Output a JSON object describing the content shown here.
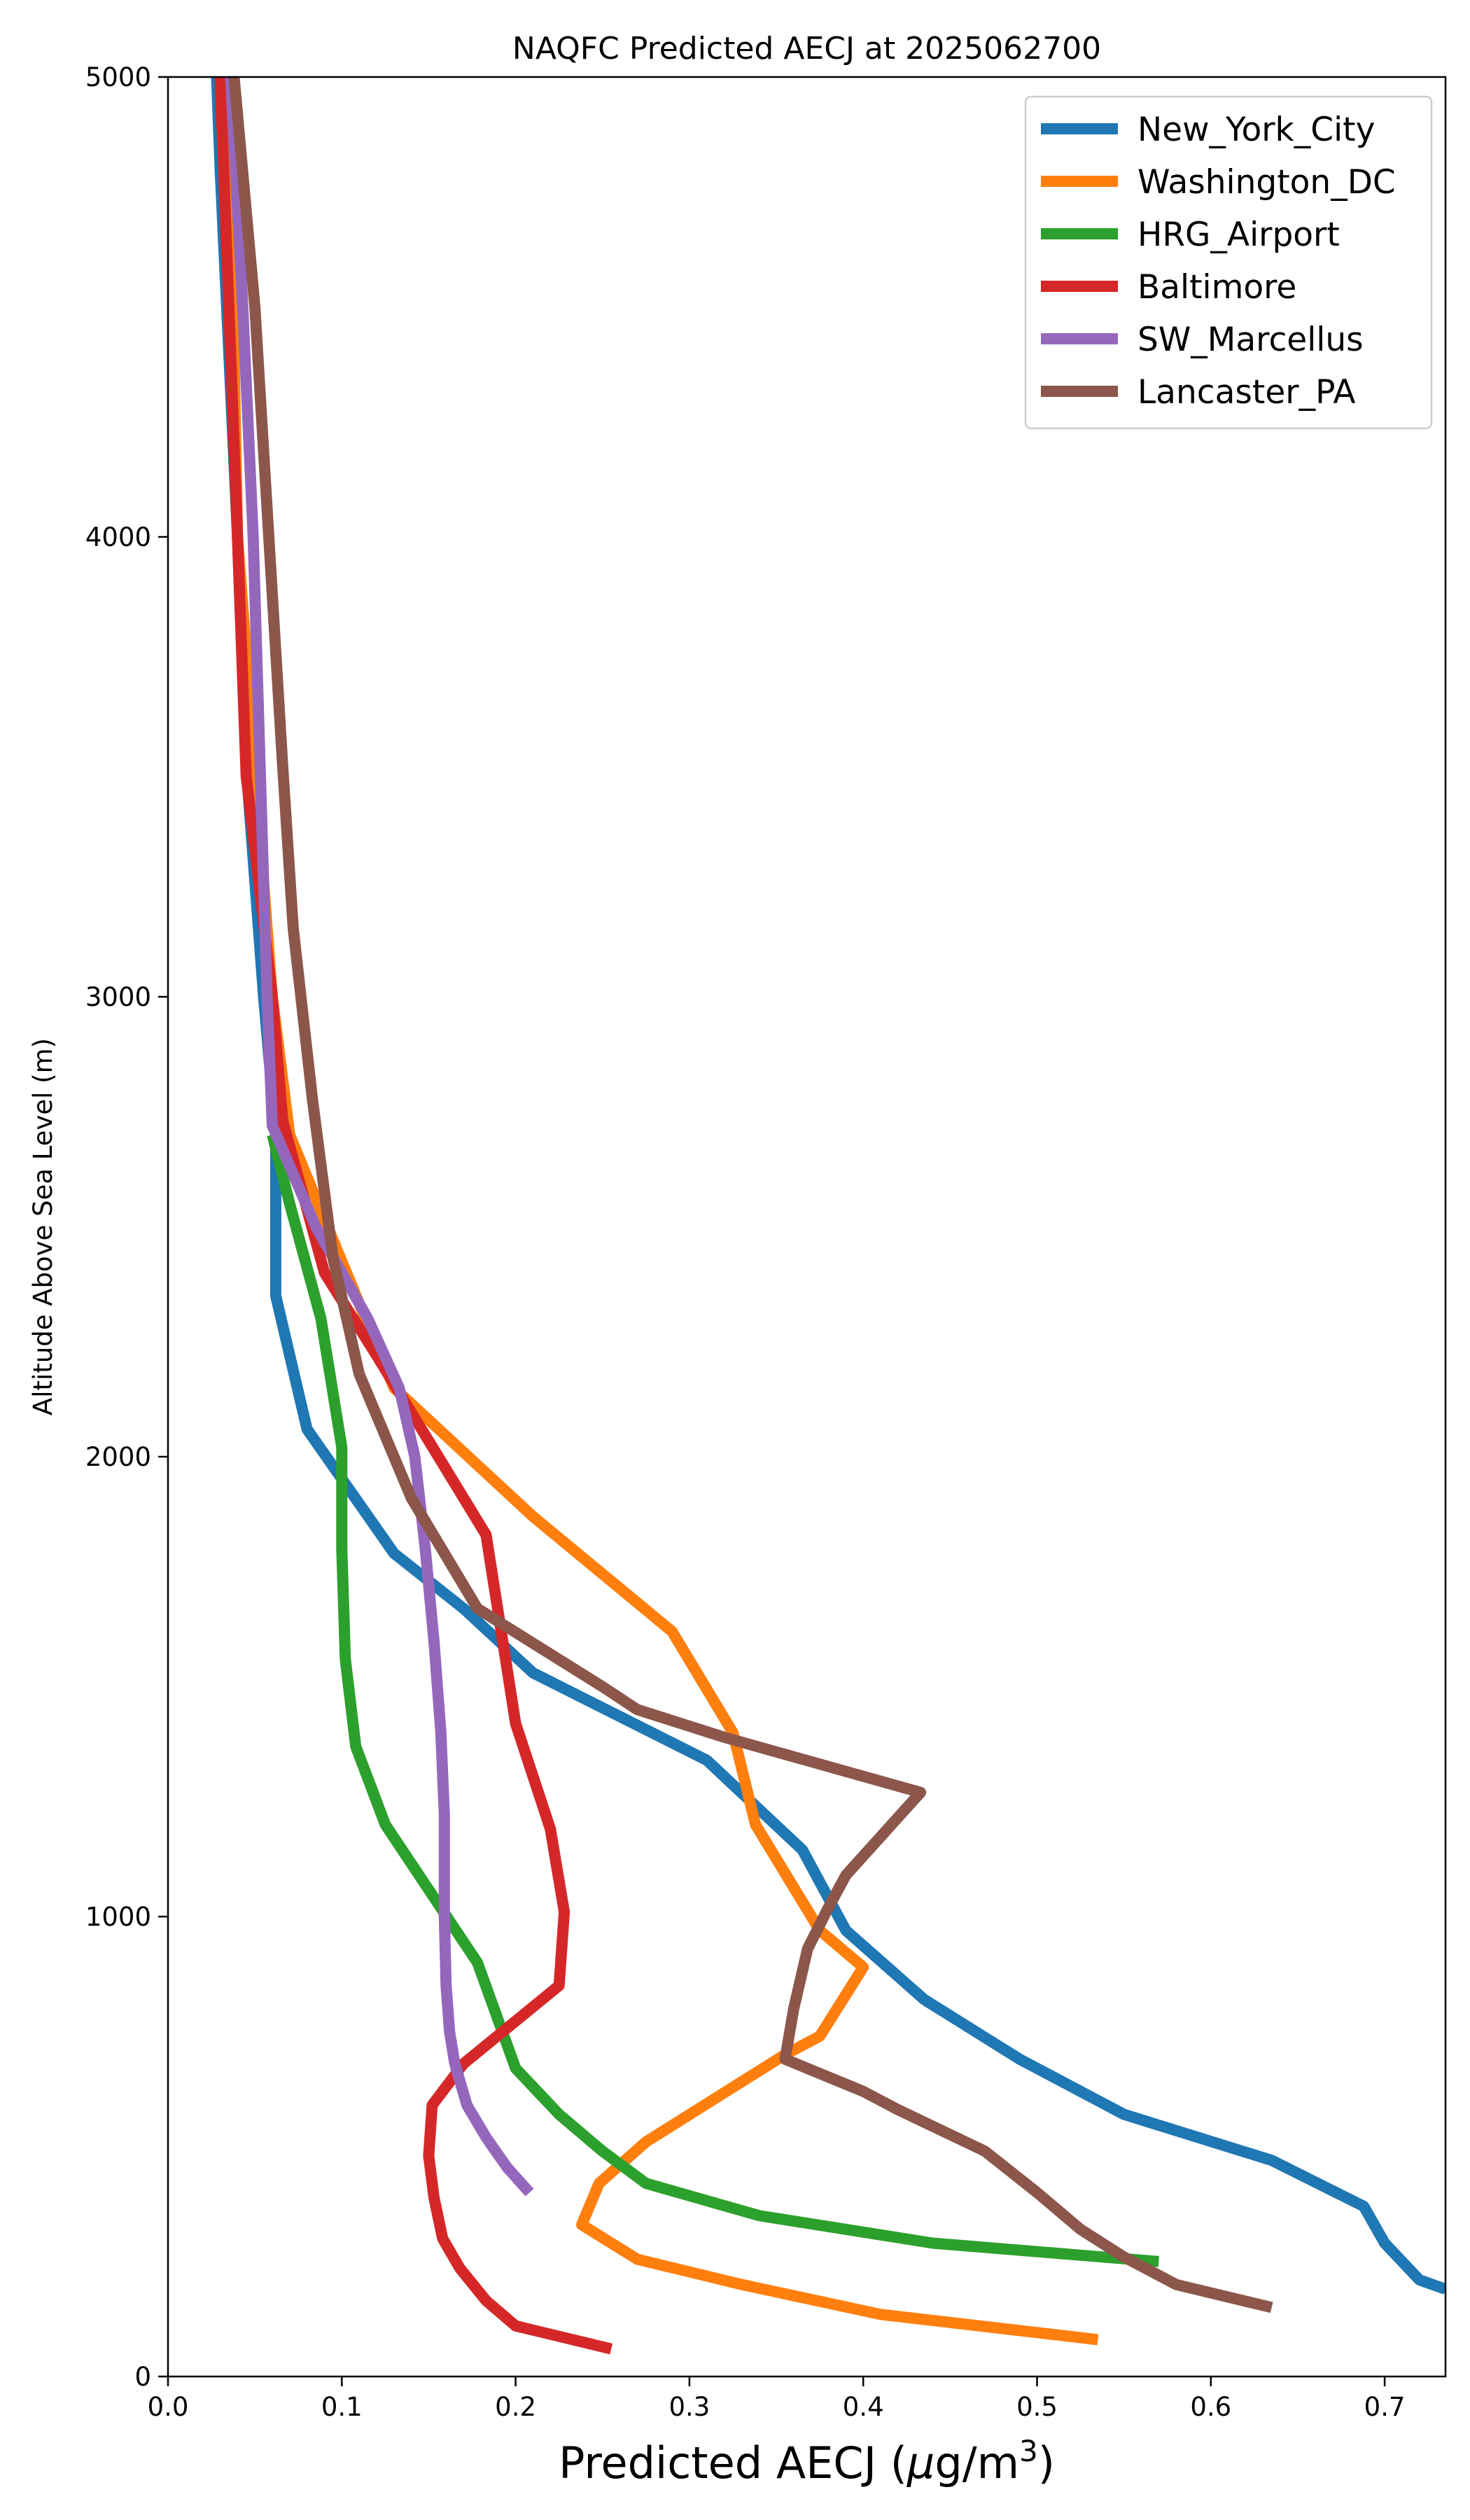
{
  "chart_data": {
    "type": "line",
    "title": "NAQFC Predicted AECJ at 2025062700",
    "xlabel": "Predicted AECJ (μg/m³)",
    "xlabel_main": "Predicted AECJ (",
    "xlabel_mu": "μ",
    "xlabel_unit": "g/m",
    "xlabel_sup": "3",
    "xlabel_close": ")",
    "ylabel": "Altitude Above Sea Level (m)",
    "xlim": [
      0,
      0.735
    ],
    "ylim": [
      0,
      5000
    ],
    "xticks": [
      0.0,
      0.1,
      0.2,
      0.3,
      0.4,
      0.5,
      0.6,
      0.7
    ],
    "xtick_labels": [
      "0.0",
      "0.1",
      "0.2",
      "0.3",
      "0.4",
      "0.5",
      "0.6",
      "0.7"
    ],
    "yticks": [
      0,
      1000,
      2000,
      3000,
      4000,
      5000
    ],
    "ytick_labels": [
      "0",
      "1000",
      "2000",
      "3000",
      "4000",
      "5000"
    ],
    "grid": false,
    "legend_position": "top-right",
    "series": [
      {
        "name": "New_York_City",
        "color": "#1f77b4",
        "points": [
          [
            0.735,
            190
          ],
          [
            0.72,
            210
          ],
          [
            0.7,
            290
          ],
          [
            0.688,
            370
          ],
          [
            0.635,
            470
          ],
          [
            0.55,
            570
          ],
          [
            0.49,
            690
          ],
          [
            0.435,
            820
          ],
          [
            0.39,
            970
          ],
          [
            0.365,
            1145
          ],
          [
            0.31,
            1340
          ],
          [
            0.21,
            1530
          ],
          [
            0.17,
            1670
          ],
          [
            0.13,
            1790
          ],
          [
            0.08,
            2060
          ],
          [
            0.062,
            2350
          ],
          [
            0.062,
            2700
          ],
          [
            0.055,
            3000
          ],
          [
            0.045,
            3500
          ],
          [
            0.04,
            4000
          ],
          [
            0.03,
            4800
          ],
          [
            0.028,
            5000
          ]
        ]
      },
      {
        "name": "Washington_DC",
        "color": "#ff7f0e",
        "points": [
          [
            0.535,
            80
          ],
          [
            0.41,
            135
          ],
          [
            0.33,
            200
          ],
          [
            0.27,
            255
          ],
          [
            0.238,
            330
          ],
          [
            0.248,
            420
          ],
          [
            0.275,
            510
          ],
          [
            0.355,
            700
          ],
          [
            0.375,
            740
          ],
          [
            0.4,
            890
          ],
          [
            0.375,
            970
          ],
          [
            0.338,
            1200
          ],
          [
            0.325,
            1400
          ],
          [
            0.29,
            1620
          ],
          [
            0.21,
            1870
          ],
          [
            0.13,
            2150
          ],
          [
            0.07,
            2700
          ],
          [
            0.06,
            3000
          ],
          [
            0.05,
            3500
          ],
          [
            0.04,
            4000
          ],
          [
            0.035,
            5000
          ]
        ]
      },
      {
        "name": "HRG_Airport",
        "color": "#2ca02c",
        "points": [
          [
            0.57,
            250
          ],
          [
            0.44,
            290
          ],
          [
            0.34,
            350
          ],
          [
            0.275,
            420
          ],
          [
            0.25,
            490
          ],
          [
            0.225,
            570
          ],
          [
            0.2,
            670
          ],
          [
            0.178,
            900
          ],
          [
            0.125,
            1200
          ],
          [
            0.108,
            1370
          ],
          [
            0.102,
            1560
          ],
          [
            0.1,
            1800
          ],
          [
            0.1,
            2020
          ],
          [
            0.088,
            2300
          ],
          [
            0.07,
            2550
          ],
          [
            0.06,
            2700
          ]
        ]
      },
      {
        "name": "Baltimore",
        "color": "#d62728",
        "points": [
          [
            0.255,
            60
          ],
          [
            0.2,
            110
          ],
          [
            0.183,
            165
          ],
          [
            0.168,
            235
          ],
          [
            0.158,
            300
          ],
          [
            0.153,
            390
          ],
          [
            0.15,
            480
          ],
          [
            0.152,
            590
          ],
          [
            0.17,
            680
          ],
          [
            0.225,
            850
          ],
          [
            0.228,
            1010
          ],
          [
            0.22,
            1190
          ],
          [
            0.2,
            1420
          ],
          [
            0.183,
            1830
          ],
          [
            0.12,
            2220
          ],
          [
            0.09,
            2400
          ],
          [
            0.066,
            2730
          ],
          [
            0.06,
            3000
          ],
          [
            0.045,
            3480
          ],
          [
            0.04,
            4000
          ],
          [
            0.035,
            4500
          ],
          [
            0.03,
            5000
          ]
        ]
      },
      {
        "name": "SW_Marcellus",
        "color": "#9467bd",
        "points": [
          [
            0.208,
            400
          ],
          [
            0.195,
            455
          ],
          [
            0.183,
            520
          ],
          [
            0.172,
            590
          ],
          [
            0.165,
            680
          ],
          [
            0.162,
            750
          ],
          [
            0.16,
            850
          ],
          [
            0.159,
            1000
          ],
          [
            0.159,
            1220
          ],
          [
            0.157,
            1400
          ],
          [
            0.153,
            1600
          ],
          [
            0.148,
            1800
          ],
          [
            0.142,
            2000
          ],
          [
            0.133,
            2150
          ],
          [
            0.115,
            2300
          ],
          [
            0.085,
            2500
          ],
          [
            0.06,
            2720
          ],
          [
            0.057,
            3000
          ],
          [
            0.053,
            3500
          ],
          [
            0.049,
            4000
          ],
          [
            0.043,
            4500
          ],
          [
            0.036,
            5000
          ]
        ]
      },
      {
        "name": "Lancaster_PA",
        "color": "#8c564b",
        "points": [
          [
            0.635,
            150
          ],
          [
            0.58,
            200
          ],
          [
            0.55,
            260
          ],
          [
            0.525,
            320
          ],
          [
            0.5,
            400
          ],
          [
            0.47,
            490
          ],
          [
            0.42,
            580
          ],
          [
            0.4,
            620
          ],
          [
            0.355,
            690
          ],
          [
            0.36,
            800
          ],
          [
            0.368,
            930
          ],
          [
            0.38,
            1020
          ],
          [
            0.39,
            1090
          ],
          [
            0.433,
            1270
          ],
          [
            0.32,
            1390
          ],
          [
            0.27,
            1450
          ],
          [
            0.25,
            1500
          ],
          [
            0.178,
            1670
          ],
          [
            0.14,
            1910
          ],
          [
            0.11,
            2180
          ],
          [
            0.095,
            2430
          ],
          [
            0.083,
            2780
          ],
          [
            0.072,
            3150
          ],
          [
            0.066,
            3500
          ],
          [
            0.058,
            4000
          ],
          [
            0.05,
            4500
          ],
          [
            0.038,
            5000
          ]
        ]
      }
    ]
  }
}
